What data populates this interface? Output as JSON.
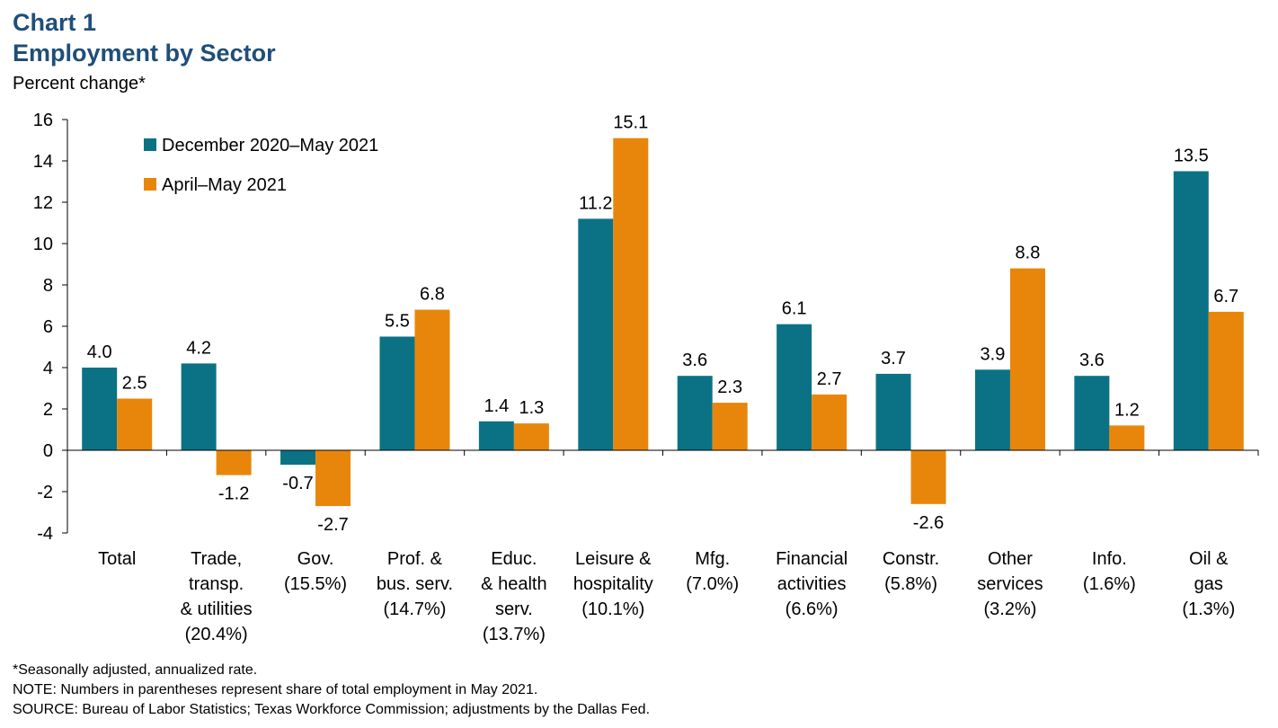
{
  "header": {
    "chart_number": "Chart 1",
    "title": "Employment by Sector",
    "y_unit": "Percent change*"
  },
  "notes": {
    "footnote": "*Seasonally adjusted, annualized rate.",
    "note": "NOTE: Numbers in parentheses represent share of total employment in May 2021.",
    "source": "SOURCE: Bureau of Labor Statistics; Texas Workforce Commission; adjustments by the Dallas Fed."
  },
  "colors": {
    "series_1": "#0b7285",
    "series_2": "#e8860c",
    "title": "#1f4e79"
  },
  "chart_data": {
    "type": "bar",
    "title": "Employment by Sector",
    "ylabel": "Percent change*",
    "xlabel": "",
    "ylim": [
      -4,
      16
    ],
    "yticks": [
      -4,
      -2,
      0,
      2,
      4,
      6,
      8,
      10,
      12,
      14,
      16
    ],
    "grid": false,
    "legend_position": "top-left",
    "categories": [
      [
        "Total"
      ],
      [
        "Trade,",
        "transp.",
        "& utilities",
        "(20.4%)"
      ],
      [
        "Gov.",
        "(15.5%)"
      ],
      [
        "Prof. &",
        "bus. serv.",
        "(14.7%)"
      ],
      [
        "Educ.",
        "& health",
        "serv.",
        "(13.7%)"
      ],
      [
        "Leisure &",
        "hospitality",
        "(10.1%)"
      ],
      [
        "Mfg.",
        "(7.0%)"
      ],
      [
        "Financial",
        "activities",
        "(6.6%)"
      ],
      [
        "Constr.",
        "(5.8%)"
      ],
      [
        "Other",
        "services",
        "(3.2%)"
      ],
      [
        "Info.",
        "(1.6%)"
      ],
      [
        "Oil &",
        "gas",
        "(1.3%)"
      ]
    ],
    "series": [
      {
        "name": "December 2020–May 2021",
        "values": [
          4.0,
          4.2,
          -0.7,
          5.5,
          1.4,
          11.2,
          3.6,
          6.1,
          3.7,
          3.9,
          3.6,
          13.5
        ],
        "labels": [
          "4.0",
          "4.2",
          "-0.7",
          "5.5",
          "1.4",
          "11.2",
          "3.6",
          "6.1",
          "3.7",
          "3.9",
          "3.6",
          "13.5"
        ]
      },
      {
        "name": "April–May 2021",
        "values": [
          2.5,
          -1.2,
          -2.7,
          6.8,
          1.3,
          15.1,
          2.3,
          2.7,
          -2.6,
          8.8,
          1.2,
          6.7
        ],
        "labels": [
          "2.5",
          "-1.2",
          "-2.7",
          "6.8",
          "1.3",
          "15.1",
          "2.3",
          "2.7",
          "-2.6",
          "8.8",
          "1.2",
          "6.7"
        ]
      }
    ]
  }
}
